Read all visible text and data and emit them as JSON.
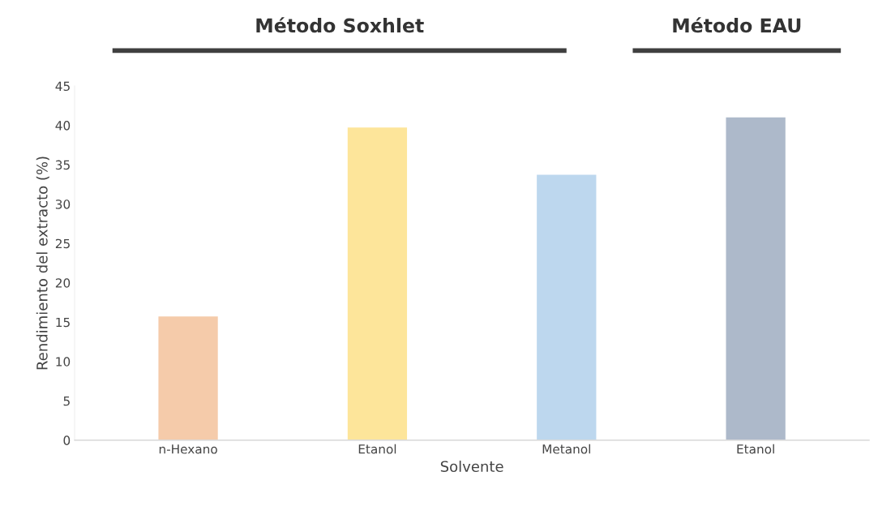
{
  "chart_data": {
    "type": "bar",
    "xlabel": "Solvente",
    "ylabel": "Rendimiento del extracto (%)",
    "categories": [
      "n-Hexano",
      "Etanol",
      "Metanol",
      "Etanol"
    ],
    "values": [
      15.8,
      39.8,
      33.8,
      41.1
    ],
    "colors": [
      "#f5cbaa",
      "#fde59a",
      "#bdd7ee",
      "#adb9ca"
    ],
    "ylim": [
      0,
      45
    ],
    "yticks": [
      0,
      5,
      10,
      15,
      20,
      25,
      30,
      35,
      40,
      45
    ],
    "grid": false,
    "annotations": [
      "Método Soxhlet",
      "Método EAU"
    ]
  }
}
